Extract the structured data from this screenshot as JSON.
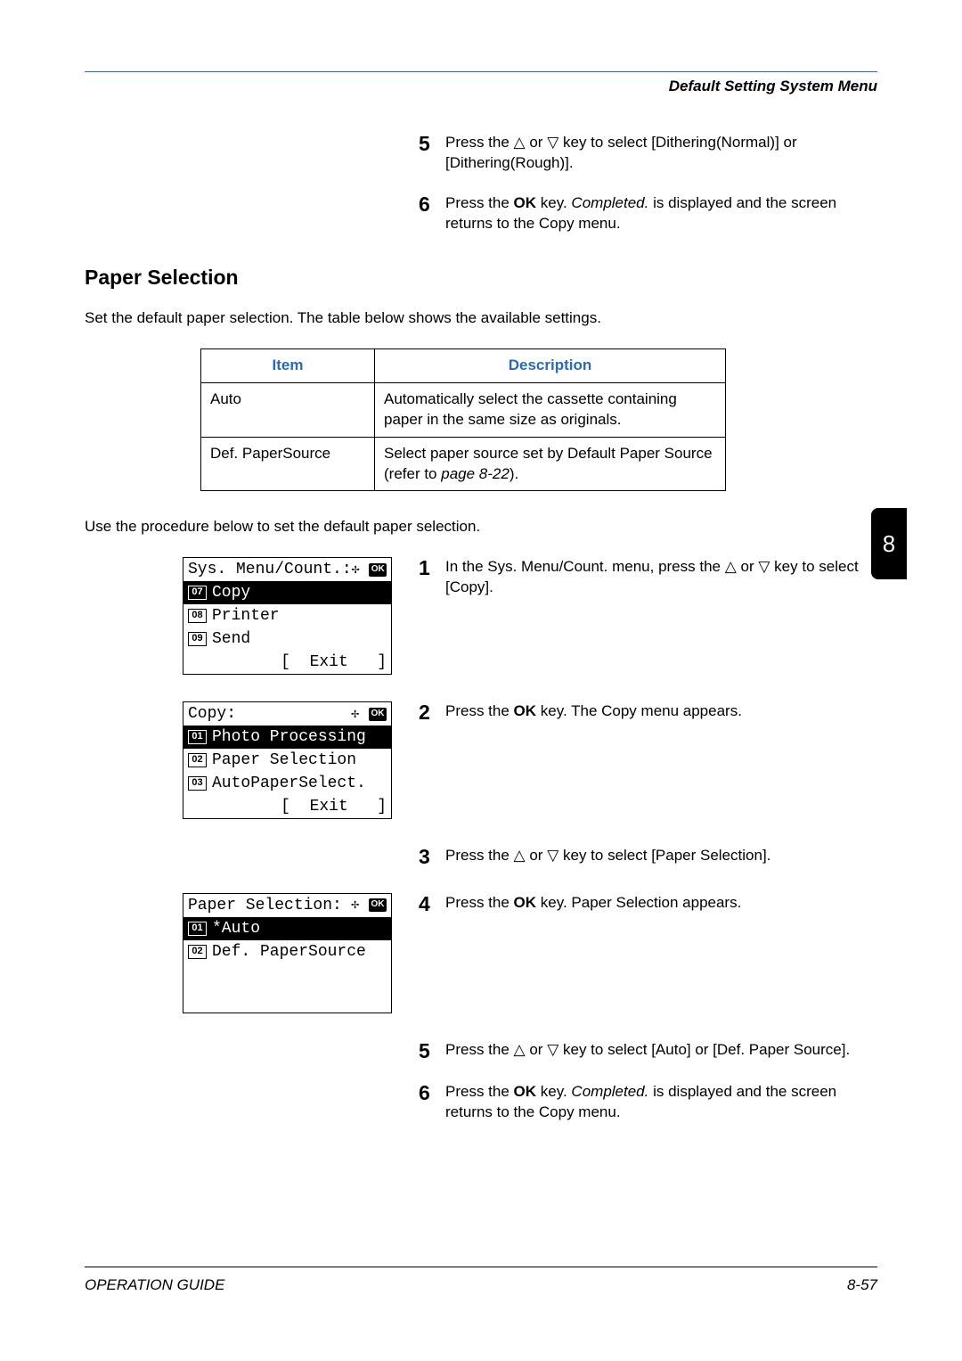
{
  "header": {
    "title": "Default Setting System Menu"
  },
  "chapter_tab": "8",
  "pre_steps": [
    {
      "num": "5",
      "html": "Press the <span class='tri'>△</span> or <span class='tri'>▽</span> key to select [Dithering(Normal)] or [Dithering(Rough)]."
    },
    {
      "num": "6",
      "html": "Press the <span class='bold'>OK</span> key. <span class='italic'>Completed.</span> is displayed and the screen returns to the Copy menu."
    }
  ],
  "section": {
    "heading": "Paper Selection",
    "intro": "Set the default paper selection. The table below shows the available settings.",
    "table": {
      "headers": [
        "Item",
        "Description"
      ],
      "rows": [
        [
          "Auto",
          "Automatically select the cassette containing paper in the same size as originals."
        ],
        [
          "Def. PaperSource",
          "Select paper source set by Default Paper Source (refer to <span class='pageref'>page 8-22</span>)."
        ]
      ]
    },
    "after_table": "Use the procedure below to set the default paper selection."
  },
  "lcd_screens": {
    "sys": {
      "title": "Sys. Menu/Count.:",
      "rows": [
        {
          "num": "07",
          "label": "Copy",
          "selected": true
        },
        {
          "num": "08",
          "label": "Printer",
          "selected": false
        },
        {
          "num": "09",
          "label": "Send",
          "selected": false
        }
      ],
      "footer": "[  Exit   ]"
    },
    "copy": {
      "title": "Copy:",
      "rows": [
        {
          "num": "01",
          "label": "Photo Processing",
          "selected": true
        },
        {
          "num": "02",
          "label": "Paper Selection",
          "selected": false
        },
        {
          "num": "03",
          "label": "AutoPaperSelect.",
          "selected": false
        }
      ],
      "footer": "[  Exit   ]"
    },
    "paper": {
      "title": "Paper Selection:",
      "rows": [
        {
          "num": "01",
          "label": "*Auto",
          "selected": true
        },
        {
          "num": "02",
          "label": "Def. PaperSource",
          "selected": false
        }
      ],
      "footer": ""
    }
  },
  "proc_steps": [
    {
      "num": "1",
      "html": "In the Sys. Menu/Count. menu, press the <span class='tri'>△</span> or <span class='tri'>▽</span> key to select [Copy]."
    },
    {
      "num": "2",
      "html": "Press the <span class='bold'>OK</span> key. The Copy menu appears."
    },
    {
      "num": "3",
      "html": "Press the <span class='tri'>△</span> or <span class='tri'>▽</span> key to select [Paper Selection]."
    },
    {
      "num": "4",
      "html": "Press the <span class='bold'>OK</span> key. Paper Selection appears."
    },
    {
      "num": "5",
      "html": "Press the <span class='tri'>△</span> or <span class='tri'>▽</span> key to select [Auto] or [Def. Paper Source]."
    },
    {
      "num": "6",
      "html": "Press the <span class='bold'>OK</span> key. <span class='italic'>Completed.</span> is displayed and the screen returns to the Copy menu."
    }
  ],
  "footer": {
    "left": "OPERATION GUIDE",
    "right": "8-57"
  },
  "colors": {
    "accent": "#2a6bb5"
  }
}
